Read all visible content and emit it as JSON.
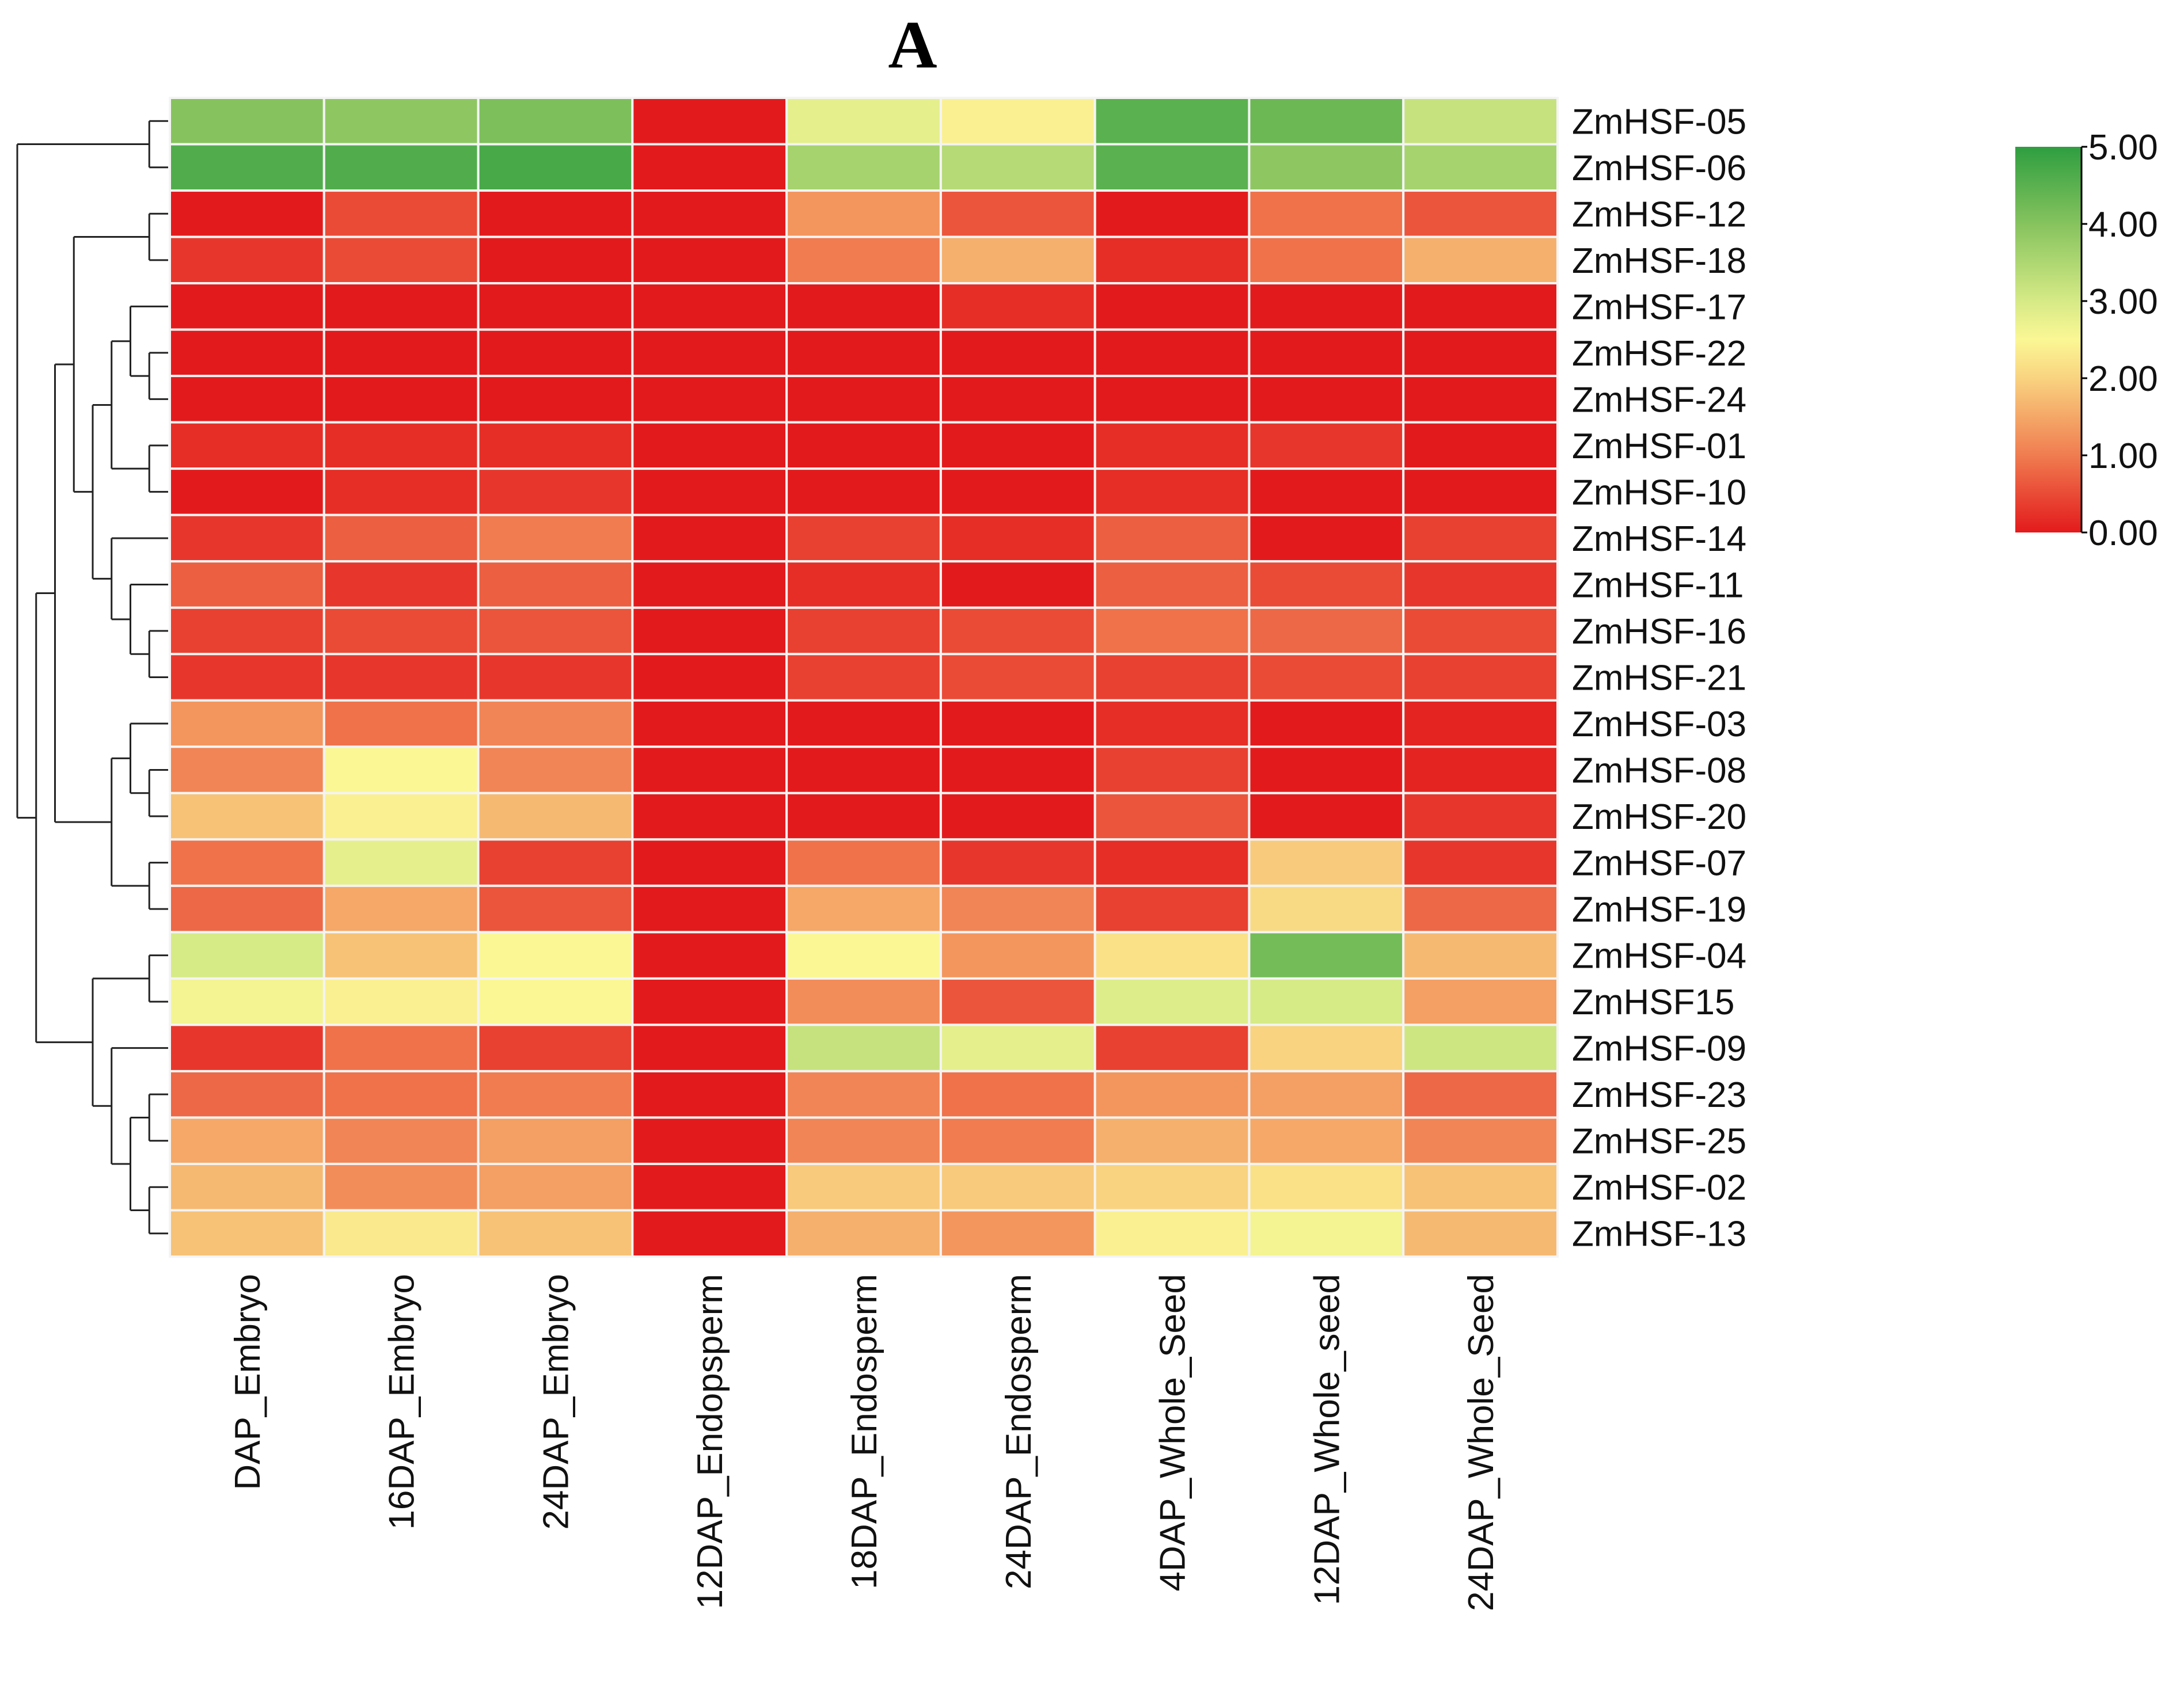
{
  "chart_data": {
    "type": "heatmap",
    "title": "A",
    "columns": [
      "DAP_Embryo",
      "16DAP_Embryo",
      "24DAP_Embryo",
      "12DAP_Endopsperm",
      "18DAP_Endosperm",
      "24DAP_Endosperm",
      "4DAP_Whole_Seed",
      "12DAP_Whole_seed",
      "24DAP_Whole_Seed"
    ],
    "rows": [
      "ZmHSF-05",
      "ZmHSF-06",
      "ZmHSF-12",
      "ZmHSF-18",
      "ZmHSF-17",
      "ZmHSF-22",
      "ZmHSF-24",
      "ZmHSF-01",
      "ZmHSF-10",
      "ZmHSF-14",
      "ZmHSF-11",
      "ZmHSF-16",
      "ZmHSF-21",
      "ZmHSF-03",
      "ZmHSF-08",
      "ZmHSF-20",
      "ZmHSF-07",
      "ZmHSF-19",
      "ZmHSF-04",
      "ZmHSF15",
      "ZmHSF-09",
      "ZmHSF-23",
      "ZmHSF-25",
      "ZmHSF-02",
      "ZmHSF-13"
    ],
    "values": [
      [
        4.0,
        3.9,
        4.1,
        0,
        2.8,
        2.4,
        4.5,
        4.3,
        3.2
      ],
      [
        4.6,
        4.6,
        4.7,
        0,
        3.6,
        3.4,
        4.5,
        3.9,
        3.6
      ],
      [
        0,
        0.5,
        0,
        0,
        1.3,
        0.6,
        0,
        0.9,
        0.6
      ],
      [
        0.3,
        0.5,
        0,
        0,
        1.0,
        1.6,
        0.2,
        0.9,
        1.6
      ],
      [
        0,
        0,
        0,
        0,
        0,
        0.2,
        0,
        0,
        0
      ],
      [
        0,
        0,
        0,
        0,
        0,
        0,
        0,
        0,
        0
      ],
      [
        0,
        0,
        0,
        0,
        0,
        0,
        0,
        0,
        0
      ],
      [
        0.2,
        0.2,
        0.2,
        0,
        0,
        0,
        0.2,
        0.3,
        0
      ],
      [
        0,
        0.2,
        0.3,
        0,
        0,
        0,
        0.2,
        0,
        0
      ],
      [
        0.3,
        0.7,
        1.0,
        0,
        0.4,
        0.2,
        0.7,
        0,
        0.4
      ],
      [
        0.7,
        0.3,
        0.7,
        0,
        0.2,
        0,
        0.7,
        0.5,
        0.3
      ],
      [
        0.4,
        0.5,
        0.6,
        0,
        0.4,
        0.5,
        0.9,
        0.8,
        0.5
      ],
      [
        0.3,
        0.3,
        0.3,
        0,
        0.4,
        0.5,
        0.4,
        0.5,
        0.4
      ],
      [
        1.3,
        0.9,
        1.1,
        0,
        0,
        0,
        0.2,
        0,
        0.1
      ],
      [
        1.1,
        2.5,
        1.1,
        0,
        0,
        0,
        0.4,
        0,
        0.1
      ],
      [
        1.8,
        2.4,
        1.7,
        0,
        0,
        0,
        0.6,
        0,
        0.3
      ],
      [
        0.9,
        2.8,
        0.4,
        0,
        0.9,
        0.3,
        0.2,
        1.9,
        0.3
      ],
      [
        0.8,
        1.5,
        0.6,
        0,
        1.5,
        1.1,
        0.4,
        2.1,
        0.8
      ],
      [
        3.0,
        1.8,
        2.5,
        0,
        2.5,
        1.3,
        2.2,
        4.2,
        1.7
      ],
      [
        2.6,
        2.4,
        2.5,
        0,
        1.2,
        0.6,
        2.9,
        3.0,
        1.4
      ],
      [
        0.3,
        0.9,
        0.4,
        0,
        3.2,
        2.8,
        0.4,
        2.0,
        3.1
      ],
      [
        0.8,
        0.9,
        1.0,
        0,
        1.1,
        0.9,
        1.3,
        1.4,
        0.8
      ],
      [
        1.5,
        1.1,
        1.4,
        0,
        1.1,
        1.0,
        1.6,
        1.5,
        1.1
      ],
      [
        1.7,
        1.2,
        1.4,
        0,
        1.9,
        1.9,
        2.0,
        2.2,
        1.8
      ],
      [
        1.8,
        2.3,
        1.8,
        0,
        1.6,
        1.3,
        2.4,
        2.6,
        1.7
      ]
    ],
    "color_scale": {
      "range": [
        0,
        5
      ],
      "ticks": [
        "0.00",
        "1.00",
        "2.00",
        "3.00",
        "4.00",
        "5.00"
      ],
      "stops": [
        [
          0,
          "#e31a1c"
        ],
        [
          1,
          "#f07c50"
        ],
        [
          2,
          "#f9d380"
        ],
        [
          2.5,
          "#fbf795"
        ],
        [
          3,
          "#d6ea86"
        ],
        [
          4,
          "#86c35e"
        ],
        [
          5,
          "#2e9e40"
        ]
      ]
    },
    "legend_placement": "right",
    "row_dendrogram": [
      [
        "ZmHSF-05",
        "ZmHSF-06"
      ],
      [
        [
          [
            [
              "ZmHSF-12",
              "ZmHSF-18"
            ],
            [
              [
                [
                  "ZmHSF-17",
                  [
                    "ZmHSF-22",
                    "ZmHSF-24"
                  ]
                ],
                [
                  "ZmHSF-01",
                  "ZmHSF-10"
                ]
              ],
              [
                "ZmHSF-14",
                [
                  "ZmHSF-11",
                  [
                    "ZmHSF-16",
                    "ZmHSF-21"
                  ]
                ]
              ]
            ]
          ],
          [
            [
              "ZmHSF-03",
              [
                "ZmHSF-08",
                "ZmHSF-20"
              ]
            ],
            [
              "ZmHSF-07",
              "ZmHSF-19"
            ]
          ]
        ],
        [
          [
            "ZmHSF-04",
            "ZmHSF15"
          ],
          [
            "ZmHSF-09",
            [
              [
                "ZmHSF-23",
                "ZmHSF-25"
              ],
              [
                "ZmHSF-02",
                "ZmHSF-13"
              ]
            ]
          ]
        ]
      ]
    ]
  }
}
